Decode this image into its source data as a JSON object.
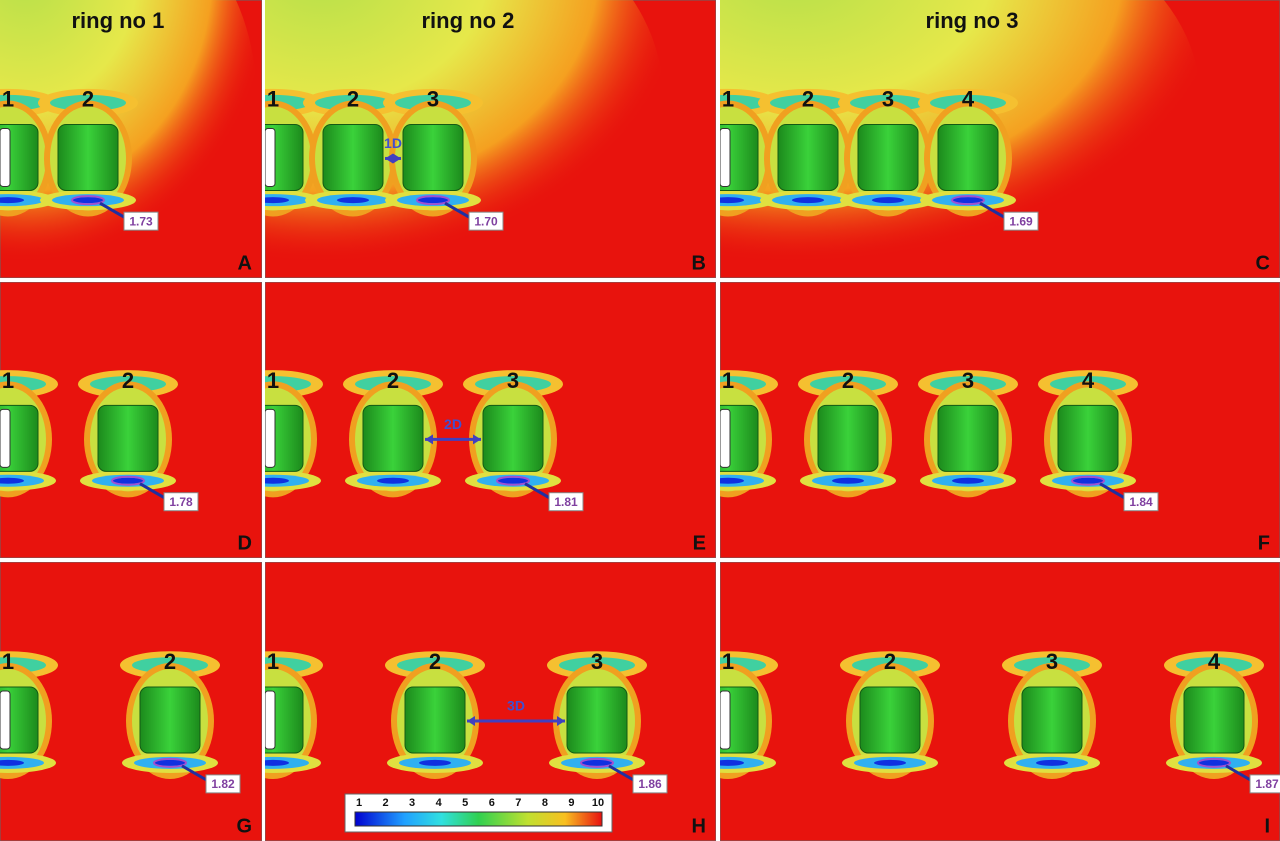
{
  "columns": [
    {
      "title": "ring no 1"
    },
    {
      "title": "ring no 2"
    },
    {
      "title": "ring no 3"
    }
  ],
  "panels": [
    {
      "letter": "A",
      "rings": [
        "1",
        "2"
      ],
      "value_label": "1.73"
    },
    {
      "letter": "B",
      "rings": [
        "1",
        "2",
        "3"
      ],
      "value_label": "1.70",
      "spacing_label": "1D"
    },
    {
      "letter": "C",
      "rings": [
        "1",
        "2",
        "3",
        "4"
      ],
      "value_label": "1.69"
    },
    {
      "letter": "D",
      "rings": [
        "1",
        "2"
      ],
      "value_label": "1.78"
    },
    {
      "letter": "E",
      "rings": [
        "1",
        "2",
        "3"
      ],
      "value_label": "1.81",
      "spacing_label": "2D"
    },
    {
      "letter": "F",
      "rings": [
        "1",
        "2",
        "3",
        "4"
      ],
      "value_label": "1.84"
    },
    {
      "letter": "G",
      "rings": [
        "1",
        "2"
      ],
      "value_label": "1.82"
    },
    {
      "letter": "H",
      "rings": [
        "1",
        "2",
        "3"
      ],
      "value_label": "1.86",
      "spacing_label": "3D"
    },
    {
      "letter": "I",
      "rings": [
        "1",
        "2",
        "3",
        "4"
      ],
      "value_label": "1.87"
    }
  ],
  "colorbar": {
    "ticks": [
      1,
      2,
      3,
      4,
      5,
      6,
      7,
      8,
      9,
      10
    ]
  }
}
